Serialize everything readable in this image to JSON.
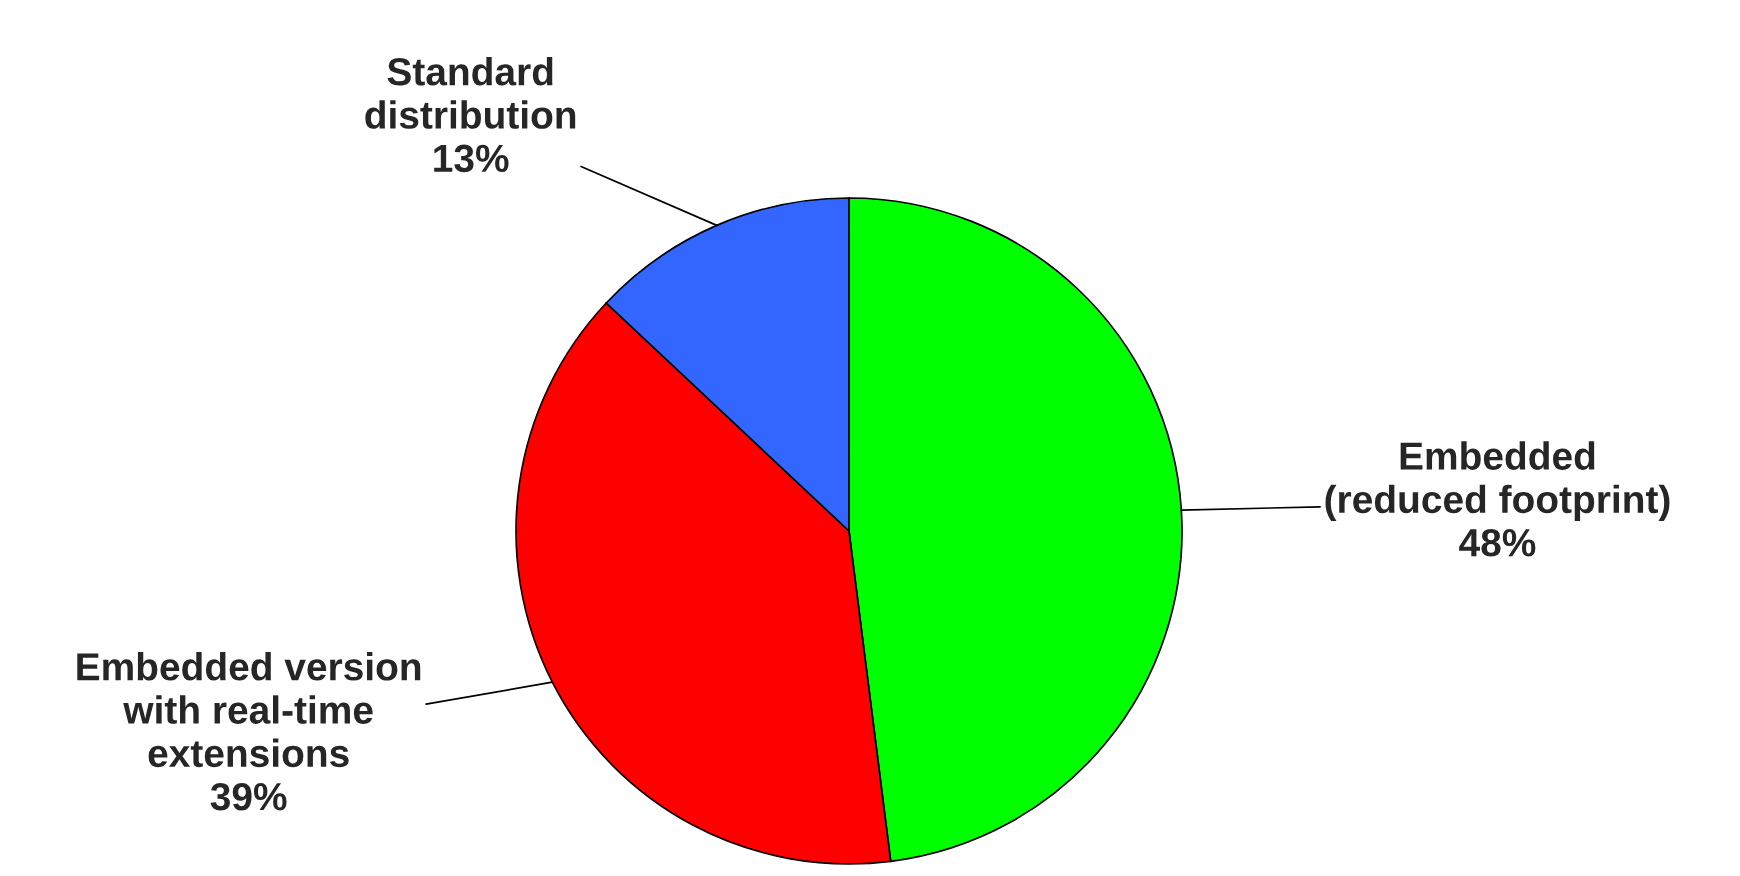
{
  "chart_data": {
    "type": "pie",
    "categories": [
      "Embedded\n(reduced footprint)",
      "Embedded version\nwith real-time\nextensions",
      "Standard\ndistribution"
    ],
    "values": [
      48,
      39,
      13
    ],
    "value_labels": [
      "48%",
      "39%",
      "13%"
    ],
    "colors": [
      "#00ff00",
      "#ff0000",
      "#3366ff"
    ],
    "legend": false
  }
}
